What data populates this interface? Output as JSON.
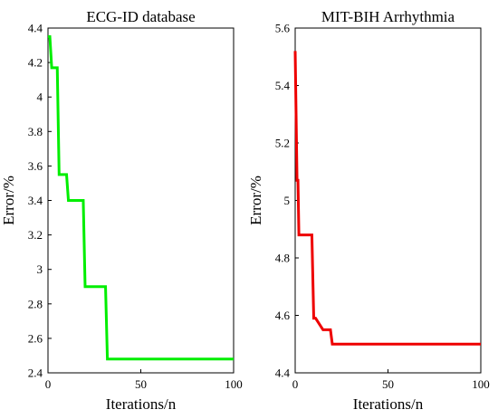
{
  "chart_data": [
    {
      "type": "line",
      "title": "ECG-ID database",
      "xlabel": "Iterations/n",
      "ylabel": "Error/%",
      "xlim": [
        0,
        100
      ],
      "ylim": [
        2.4,
        4.4
      ],
      "xticks": [
        0,
        50,
        100
      ],
      "yticks": [
        2.4,
        2.6,
        2.8,
        3,
        3.2,
        3.4,
        3.6,
        3.8,
        4,
        4.2,
        4.4
      ],
      "grid": false,
      "series": [
        {
          "color": "#00ee00",
          "x": [
            0,
            1,
            2,
            5,
            6,
            10,
            11,
            19,
            20,
            31,
            32,
            100
          ],
          "y": [
            4.35,
            4.35,
            4.17,
            4.17,
            3.55,
            3.55,
            3.4,
            3.4,
            2.9,
            2.9,
            2.48,
            2.48
          ]
        }
      ]
    },
    {
      "type": "line",
      "title": "MIT-BIH Arrhythmia",
      "xlabel": "Iterations/n",
      "ylabel": "Error/%",
      "xlim": [
        0,
        100
      ],
      "ylim": [
        4.4,
        5.6
      ],
      "xticks": [
        0,
        50,
        100
      ],
      "yticks": [
        4.4,
        4.6,
        4.8,
        5,
        5.2,
        5.4,
        5.6
      ],
      "grid": false,
      "series": [
        {
          "color": "#ee0000",
          "x": [
            0,
            1,
            1.5,
            2,
            9,
            10,
            11,
            15,
            16,
            19,
            20,
            100
          ],
          "y": [
            5.52,
            5.07,
            5.07,
            4.88,
            4.88,
            4.59,
            4.59,
            4.55,
            4.55,
            4.55,
            4.5,
            4.5
          ]
        }
      ]
    }
  ]
}
